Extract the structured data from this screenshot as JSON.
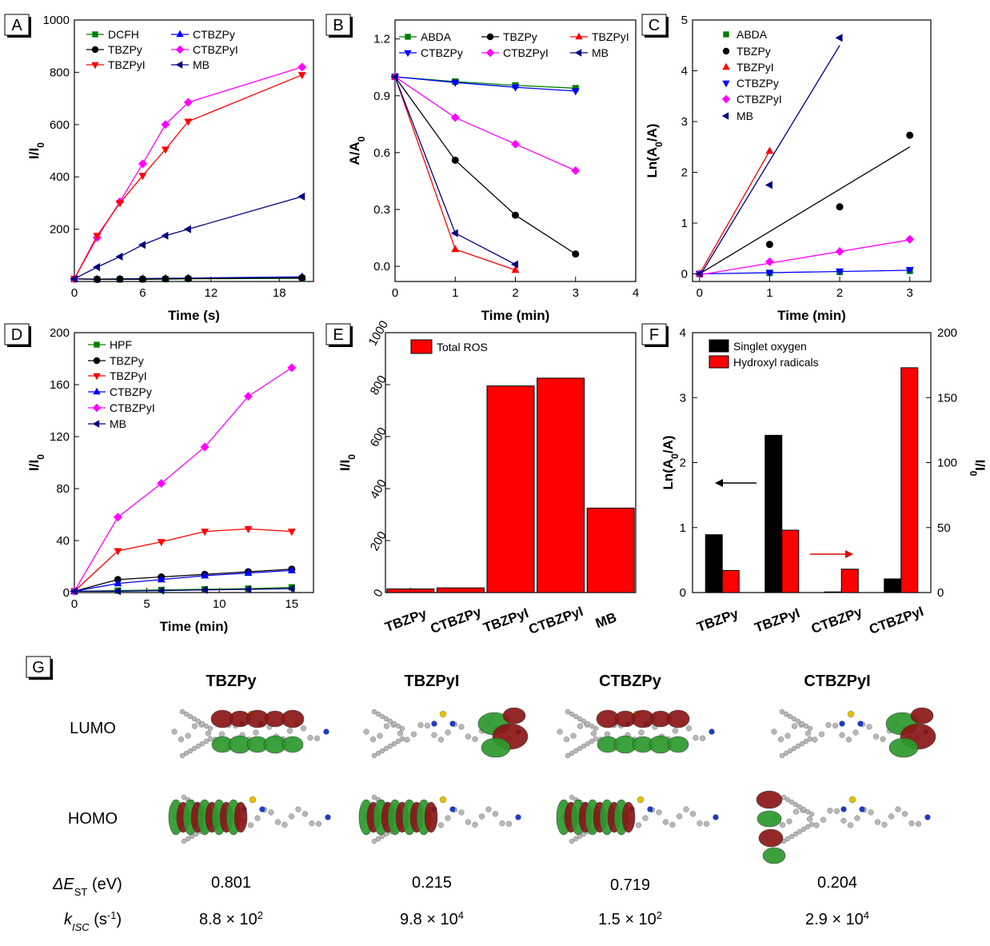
{
  "chart_data": [
    {
      "panel": "A",
      "type": "line",
      "xlabel": "Time (s)",
      "ylabel": "I/I0",
      "xlim": [
        0,
        21
      ],
      "ylim": [
        0,
        1000
      ],
      "xticks": [
        0,
        6,
        12,
        18
      ],
      "yticks": [
        200,
        400,
        600,
        800,
        1000
      ],
      "series": [
        {
          "name": "DCFH",
          "color": "#008000",
          "marker": "square",
          "x": [
            0,
            2,
            4,
            6,
            8,
            10,
            20
          ],
          "y": [
            10,
            8,
            8,
            8,
            9,
            10,
            12
          ]
        },
        {
          "name": "CTBZPy",
          "color": "#0000ff",
          "marker": "triangle-up",
          "x": [
            0,
            2,
            4,
            6,
            8,
            10,
            20
          ],
          "y": [
            10,
            9,
            10,
            11,
            12,
            13,
            18
          ]
        },
        {
          "name": "TBZPy",
          "color": "#000000",
          "marker": "circle",
          "x": [
            0,
            2,
            4,
            6,
            8,
            10,
            20
          ],
          "y": [
            10,
            8,
            9,
            9,
            10,
            11,
            14
          ]
        },
        {
          "name": "CTBZPyI",
          "color": "#ff00ff",
          "marker": "diamond",
          "x": [
            0,
            2,
            4,
            6,
            8,
            10,
            20
          ],
          "y": [
            10,
            168,
            305,
            450,
            600,
            685,
            820
          ]
        },
        {
          "name": "TBZPyI",
          "color": "#ff0000",
          "marker": "triangle-down",
          "x": [
            0,
            2,
            4,
            6,
            8,
            10,
            20
          ],
          "y": [
            10,
            175,
            300,
            405,
            505,
            612,
            790
          ]
        },
        {
          "name": "MB",
          "color": "#000080",
          "marker": "triangle-left",
          "x": [
            0,
            2,
            4,
            6,
            8,
            10,
            20
          ],
          "y": [
            10,
            55,
            95,
            140,
            175,
            200,
            325
          ]
        }
      ]
    },
    {
      "panel": "B",
      "type": "line",
      "xlabel": "Time (min)",
      "ylabel": "A/A0",
      "xlim": [
        0,
        4
      ],
      "ylim": [
        -0.08,
        1.3
      ],
      "xticks": [
        0,
        1,
        2,
        3,
        4
      ],
      "yticks": [
        0.0,
        0.3,
        0.6,
        0.9,
        1.2
      ],
      "series": [
        {
          "name": "ABDA",
          "color": "#008000",
          "marker": "square",
          "x": [
            0,
            1,
            2,
            3
          ],
          "y": [
            1.0,
            0.975,
            0.955,
            0.94
          ]
        },
        {
          "name": "TBZPy",
          "color": "#000000",
          "marker": "circle",
          "x": [
            0,
            1,
            2,
            3
          ],
          "y": [
            1.0,
            0.56,
            0.27,
            0.065
          ]
        },
        {
          "name": "TBZPyI",
          "color": "#ff0000",
          "marker": "triangle-up",
          "x": [
            0,
            1,
            2
          ],
          "y": [
            1.0,
            0.09,
            -0.02
          ]
        },
        {
          "name": "CTBZPy",
          "color": "#0000ff",
          "marker": "triangle-down",
          "x": [
            0,
            1,
            2,
            3
          ],
          "y": [
            1.0,
            0.97,
            0.945,
            0.925
          ]
        },
        {
          "name": "CTBZPyI",
          "color": "#ff00ff",
          "marker": "diamond",
          "x": [
            0,
            1,
            2,
            3
          ],
          "y": [
            1.0,
            0.785,
            0.645,
            0.505
          ]
        },
        {
          "name": "MB",
          "color": "#000080",
          "marker": "triangle-left",
          "x": [
            0,
            1,
            2
          ],
          "y": [
            1.0,
            0.175,
            0.01
          ]
        }
      ]
    },
    {
      "panel": "C",
      "type": "scatter",
      "xlabel": "Time (min)",
      "ylabel": "Ln(A0/A)",
      "xlim": [
        -0.1,
        3.3
      ],
      "ylim": [
        -0.15,
        5
      ],
      "xticks": [
        0,
        1,
        2,
        3
      ],
      "yticks": [
        0,
        1,
        2,
        3,
        4,
        5
      ],
      "series": [
        {
          "name": "ABDA",
          "color": "#008000",
          "marker": "square",
          "x": [
            0,
            1,
            2,
            3
          ],
          "y": [
            0,
            0.02,
            0.04,
            0.06
          ]
        },
        {
          "name": "TBZPy",
          "color": "#000000",
          "marker": "circle",
          "x": [
            0,
            1,
            2,
            3
          ],
          "y": [
            0,
            0.58,
            1.32,
            2.73
          ],
          "fit": [
            [
              0,
              0
            ],
            [
              3,
              2.5
            ]
          ]
        },
        {
          "name": "TBZPyI",
          "color": "#ff0000",
          "marker": "triangle-up",
          "x": [
            0,
            1
          ],
          "y": [
            0,
            2.42
          ],
          "fit": [
            [
              0,
              0
            ],
            [
              1,
              2.42
            ]
          ]
        },
        {
          "name": "CTBZPy",
          "color": "#0000ff",
          "marker": "triangle-down",
          "x": [
            0,
            1,
            2,
            3
          ],
          "y": [
            0,
            0.02,
            0.05,
            0.08
          ],
          "fit": [
            [
              0,
              0
            ],
            [
              3,
              0.07
            ]
          ]
        },
        {
          "name": "CTBZPyI",
          "color": "#ff00ff",
          "marker": "diamond",
          "x": [
            0,
            1,
            2,
            3
          ],
          "y": [
            0,
            0.24,
            0.44,
            0.68
          ],
          "fit": [
            [
              0,
              -0.02
            ],
            [
              3,
              0.67
            ]
          ]
        },
        {
          "name": "MB",
          "color": "#000080",
          "marker": "triangle-left",
          "x": [
            0,
            1,
            2
          ],
          "y": [
            0,
            1.75,
            4.65
          ],
          "fit": [
            [
              0,
              -0.05
            ],
            [
              2,
              4.5
            ]
          ]
        }
      ]
    },
    {
      "panel": "D",
      "type": "line",
      "xlabel": "Time (min)",
      "ylabel": "I/I0",
      "xlim": [
        0,
        16.5
      ],
      "ylim": [
        0,
        200
      ],
      "xticks": [
        0,
        5,
        10,
        15
      ],
      "yticks": [
        0,
        40,
        80,
        120,
        160,
        200
      ],
      "series": [
        {
          "name": "HPF",
          "color": "#008000",
          "marker": "square",
          "x": [
            0,
            3,
            6,
            9,
            12,
            15
          ],
          "y": [
            1,
            1.5,
            2,
            2.5,
            3,
            4
          ]
        },
        {
          "name": "TBZPy",
          "color": "#000000",
          "marker": "circle",
          "x": [
            0,
            3,
            6,
            9,
            12,
            15
          ],
          "y": [
            1,
            10,
            12,
            14,
            16,
            18
          ]
        },
        {
          "name": "TBZPyI",
          "color": "#ff0000",
          "marker": "triangle-down",
          "x": [
            0,
            3,
            6,
            9,
            12,
            15
          ],
          "y": [
            1,
            32,
            39,
            47,
            49,
            47
          ]
        },
        {
          "name": "CTBZPy",
          "color": "#0000ff",
          "marker": "triangle-up",
          "x": [
            0,
            3,
            6,
            9,
            12,
            15
          ],
          "y": [
            1,
            7,
            10,
            13,
            15,
            17
          ]
        },
        {
          "name": "CTBZPyI",
          "color": "#ff00ff",
          "marker": "diamond",
          "x": [
            0,
            3,
            6,
            9,
            12,
            15
          ],
          "y": [
            1,
            58,
            84,
            112,
            151,
            173
          ]
        },
        {
          "name": "MB",
          "color": "#000080",
          "marker": "triangle-left",
          "x": [
            0,
            3,
            6,
            9,
            12,
            15
          ],
          "y": [
            1,
            1,
            1.5,
            2,
            2.5,
            3
          ]
        }
      ]
    },
    {
      "panel": "E",
      "type": "bar",
      "ylabel": "I/I0",
      "ylim": [
        0,
        1000
      ],
      "yticks": [
        0,
        200,
        400,
        600,
        800,
        1000
      ],
      "categories": [
        "TBZPy",
        "CTBZPy",
        "TBZPyI",
        "CTBZPyI",
        "MB"
      ],
      "series": [
        {
          "name": "Total ROS",
          "color": "#ff0000",
          "values": [
            14,
            18,
            795,
            825,
            325
          ]
        }
      ]
    },
    {
      "panel": "F",
      "type": "bar",
      "ylabel": "Ln(A0/A)",
      "y2label": "I/I0",
      "ylim": [
        0,
        4
      ],
      "y2lim": [
        0,
        200
      ],
      "yticks": [
        0,
        1,
        2,
        3,
        4
      ],
      "y2ticks": [
        0,
        50,
        100,
        150,
        200
      ],
      "categories": [
        "TBZPy",
        "TBZPyI",
        "CTBZPy",
        "CTBZPyI"
      ],
      "series": [
        {
          "name": "Singlet oxygen",
          "color": "#000000",
          "axis": "left",
          "values": [
            0.89,
            2.42,
            0.01,
            0.21
          ]
        },
        {
          "name": "Hydroxyl radicals",
          "color": "#ff0000",
          "axis": "right",
          "values": [
            17,
            48,
            18,
            173
          ]
        }
      ]
    }
  ],
  "panel_g": {
    "label": "G",
    "compounds": [
      "TBZPy",
      "TBZPyI",
      "CTBZPy",
      "CTBZPyI"
    ],
    "row_labels": {
      "lumo": "LUMO",
      "homo": "HOMO",
      "dest": "ΔE",
      "dest_sub": "ST",
      "dest_unit": " (eV)",
      "kisc": "k",
      "kisc_sub": "ISC",
      "kisc_unit": " (s",
      "kisc_unit_exp": "-1",
      "kisc_unit_close": ")"
    },
    "delta_est": [
      "0.801",
      "0.215",
      "0.719",
      "0.204"
    ],
    "kisc_mant": [
      "8.8 × 10",
      "9.8 × 10",
      "1.5 × 10",
      "2.9 × 10"
    ],
    "kisc_exp": [
      "2",
      "4",
      "2",
      "4"
    ]
  }
}
